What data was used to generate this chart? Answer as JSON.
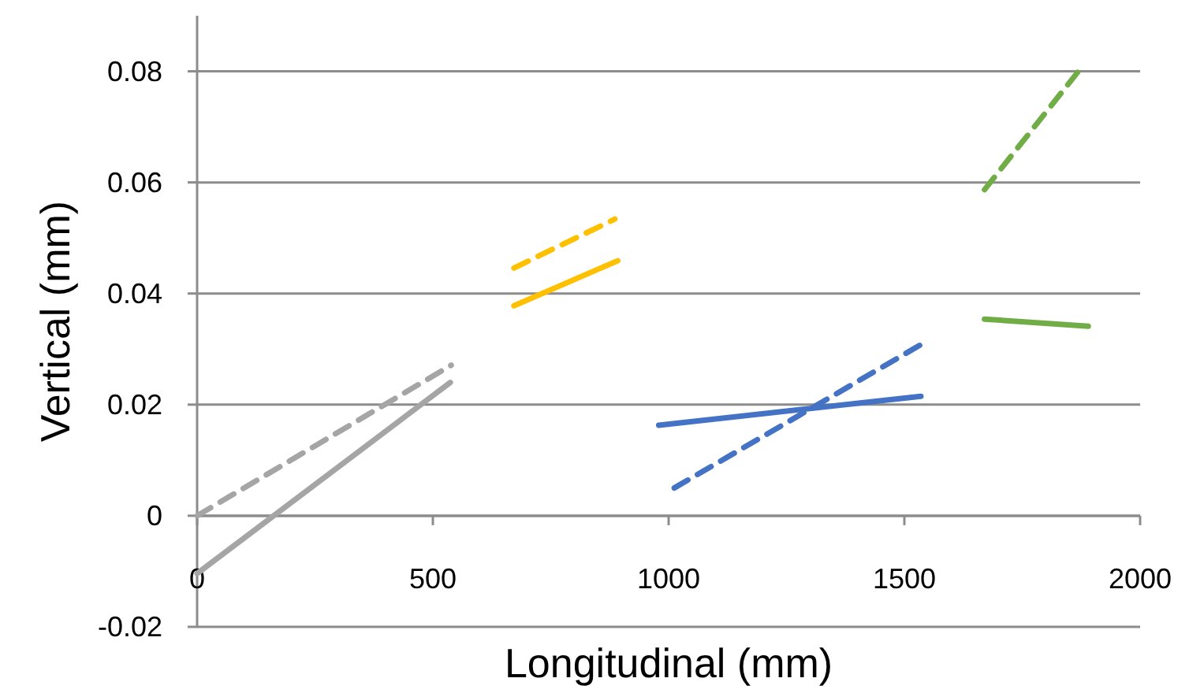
{
  "chart_data": {
    "type": "line",
    "xlabel": "Longitudinal (mm)",
    "ylabel": "Vertical (mm)",
    "xlim": [
      0,
      2000
    ],
    "xticks": [
      0,
      500,
      1000,
      1500,
      2000
    ],
    "ylim": [
      -0.02,
      0.09
    ],
    "yticks": [
      -0.02,
      0,
      0.02,
      0.04,
      0.06,
      0.08
    ],
    "grid": "y",
    "marker": "none",
    "series": [
      {
        "color": "#a5a5a5",
        "line_style": "solid",
        "x": [
          0,
          537
        ],
        "values": [
          -0.0104,
          0.024
        ]
      },
      {
        "color": "#a5a5a5",
        "line_style": "dashed",
        "x": [
          0,
          539
        ],
        "values": [
          0,
          0.0271
        ]
      },
      {
        "color": "#ffc000",
        "line_style": "solid",
        "x": [
          672,
          892
        ],
        "values": [
          0.0378,
          0.0459
        ]
      },
      {
        "color": "#ffc000",
        "line_style": "dashed",
        "x": [
          672,
          886
        ],
        "values": [
          0.0446,
          0.0534
        ]
      },
      {
        "color": "#4472c4",
        "line_style": "solid",
        "x": [
          979,
          1535
        ],
        "values": [
          0.0163,
          0.0215
        ]
      },
      {
        "color": "#4472c4",
        "line_style": "dashed",
        "x": [
          1012,
          1535
        ],
        "values": [
          0.005,
          0.0308
        ]
      },
      {
        "color": "#70ad47",
        "line_style": "solid",
        "x": [
          1670,
          1890
        ],
        "values": [
          0.0354,
          0.0341
        ]
      },
      {
        "color": "#70ad47",
        "line_style": "dashed",
        "x": [
          1670,
          1870
        ],
        "values": [
          0.0587,
          0.0801
        ]
      }
    ]
  }
}
